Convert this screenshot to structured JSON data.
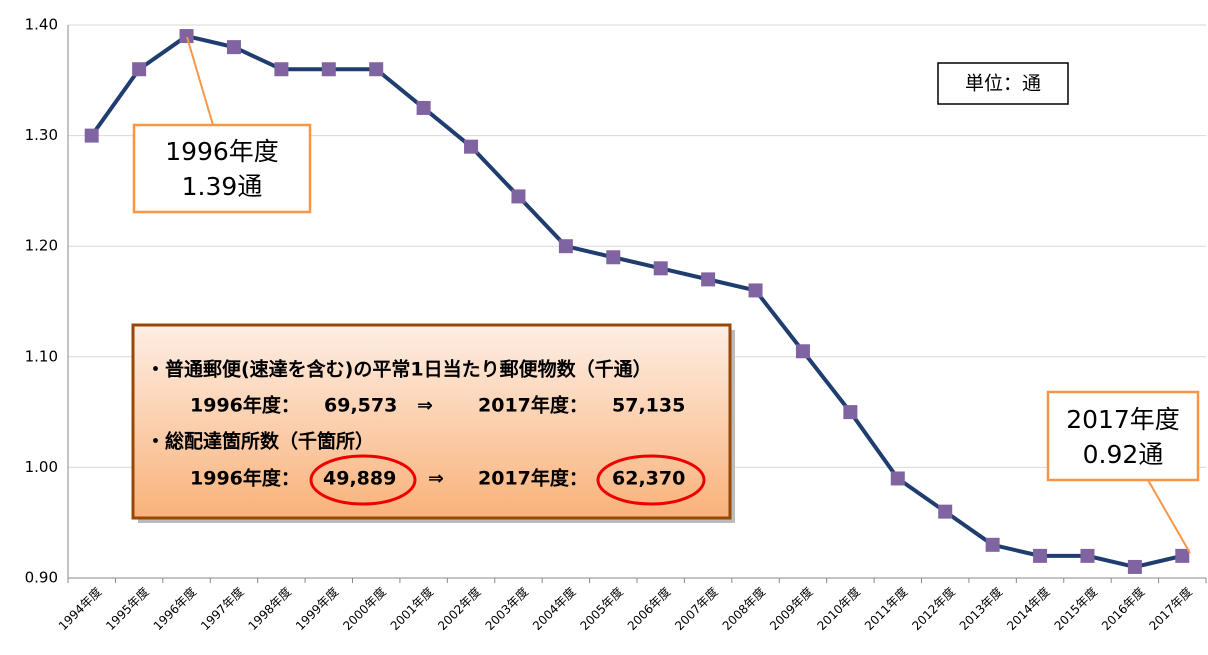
{
  "chart_data": {
    "type": "line",
    "categories": [
      "1994年度",
      "1995年度",
      "1996年度",
      "1997年度",
      "1998年度",
      "1999年度",
      "2000年度",
      "2001年度",
      "2002年度",
      "2003年度",
      "2004年度",
      "2005年度",
      "2006年度",
      "2007年度",
      "2008年度",
      "2009年度",
      "2010年度",
      "2011年度",
      "2012年度",
      "2013年度",
      "2014年度",
      "2015年度",
      "2016年度",
      "2017年度"
    ],
    "series": [
      {
        "color": "#1f3d6e",
        "marker_color": "#8064a2",
        "values": [
          1.3,
          1.36,
          1.39,
          1.38,
          1.36,
          1.36,
          1.36,
          1.325,
          1.29,
          1.245,
          1.2,
          1.19,
          1.18,
          1.17,
          1.16,
          1.105,
          1.05,
          0.99,
          0.96,
          0.93,
          0.92,
          0.92,
          0.91,
          0.92
        ]
      }
    ],
    "ylim": [
      0.9,
      1.4
    ],
    "yticks": [
      {
        "value": 0.9,
        "label": "0.90"
      },
      {
        "value": 1.0,
        "label": "1.00"
      },
      {
        "value": 1.1,
        "label": "1.10"
      },
      {
        "value": 1.2,
        "label": "1.20"
      },
      {
        "value": 1.3,
        "label": "1.30"
      },
      {
        "value": 1.4,
        "label": "1.40"
      }
    ],
    "grid": true,
    "unit_note": "単位：通",
    "callouts": [
      {
        "lines": [
          "1996年度",
          "1.39通"
        ]
      },
      {
        "lines": [
          "2017年度",
          "0.92通"
        ]
      }
    ],
    "info_box": {
      "heading1": "・普通郵便(速達を含む)の平常1日当たり郵便物数（千通）",
      "row1": {
        "label1": "1996年度：",
        "value1": "69,573",
        "arrow": "⇒",
        "label2": "2017年度：",
        "value2": "57,135"
      },
      "heading2": "・総配達箇所数（千箇所）",
      "row2": {
        "label1": "1996年度：",
        "value1": "49,889",
        "arrow": "⇒",
        "label2": "2017年度：",
        "value2": "62,370"
      }
    }
  }
}
